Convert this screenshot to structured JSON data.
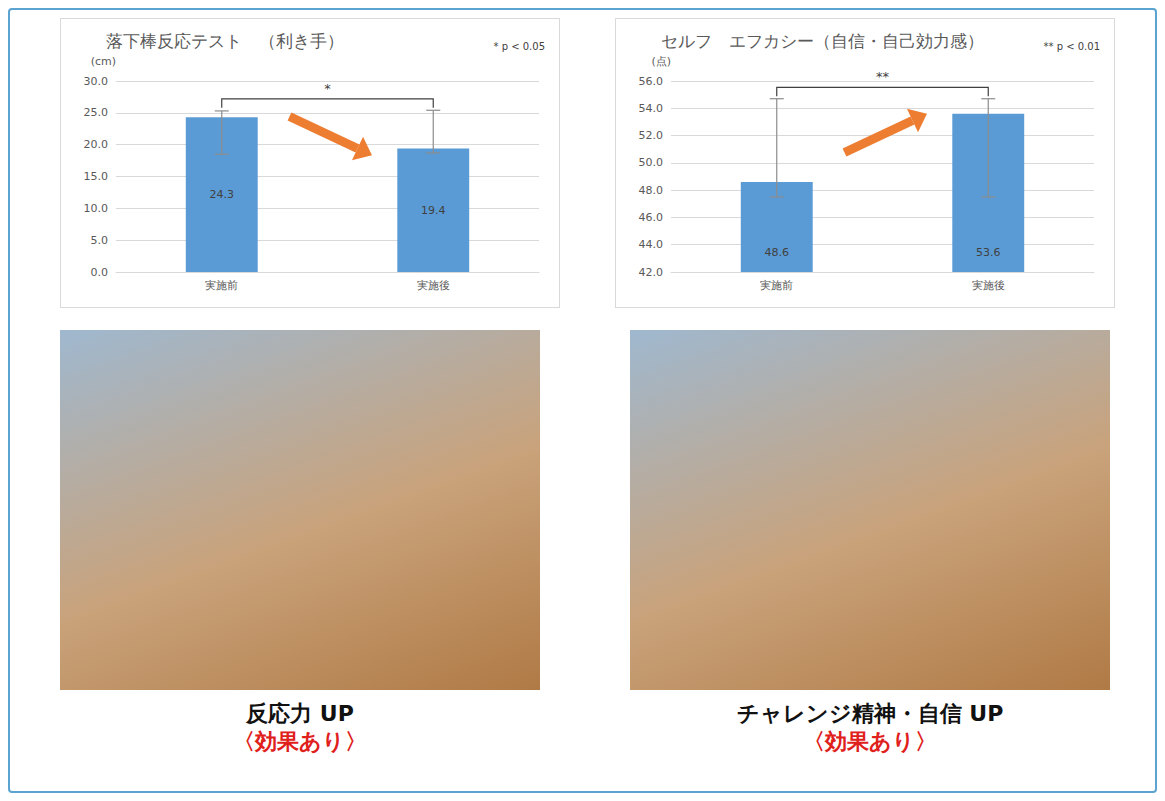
{
  "chart_data": [
    {
      "type": "bar",
      "title": "落下棒反応テスト　（利き手）",
      "note": "* p < 0.05",
      "y_label": "(cm)",
      "categories": [
        "実施前",
        "実施後"
      ],
      "values": [
        24.3,
        19.4
      ],
      "error_low": [
        18.5,
        18.7
      ],
      "error_high": [
        25.3,
        25.4
      ],
      "significance": "*",
      "color": "#5b9bd5",
      "ylim": [
        0,
        30
      ],
      "yticks": [
        {
          "value": 0,
          "label": "0.0"
        },
        {
          "value": 5,
          "label": "5.0"
        },
        {
          "value": 10,
          "label": "10.0"
        },
        {
          "value": 15,
          "label": "15.0"
        },
        {
          "value": 20,
          "label": "20.0"
        },
        {
          "value": 25,
          "label": "25.0"
        },
        {
          "value": 30,
          "label": "30.0"
        }
      ],
      "grid": true,
      "data_labels": true
    },
    {
      "type": "bar",
      "title": "セルフ　エフカシー（自信・自己効力感）",
      "note": "** p < 0.01",
      "y_label": "(点)",
      "categories": [
        "実施前",
        "実施後"
      ],
      "values": [
        48.6,
        53.6
      ],
      "error_low": [
        47.5,
        47.5
      ],
      "error_high": [
        54.7,
        54.7
      ],
      "significance": "**",
      "color": "#5b9bd5",
      "ylim": [
        42,
        56
      ],
      "yticks": [
        {
          "value": 42,
          "label": "42.0"
        },
        {
          "value": 44,
          "label": "44.0"
        },
        {
          "value": 46,
          "label": "46.0"
        },
        {
          "value": 48,
          "label": "48.0"
        },
        {
          "value": 50,
          "label": "50.0"
        },
        {
          "value": 52,
          "label": "52.0"
        },
        {
          "value": 54,
          "label": "54.0"
        },
        {
          "value": 56,
          "label": "56.0"
        }
      ],
      "grid": true,
      "data_labels": true
    }
  ],
  "captions": [
    {
      "text": "反応力 UP",
      "result": "〈効果あり〉"
    },
    {
      "text": "チャレンジ精神・自信 UP",
      "result": "〈効果あり〉"
    }
  ]
}
